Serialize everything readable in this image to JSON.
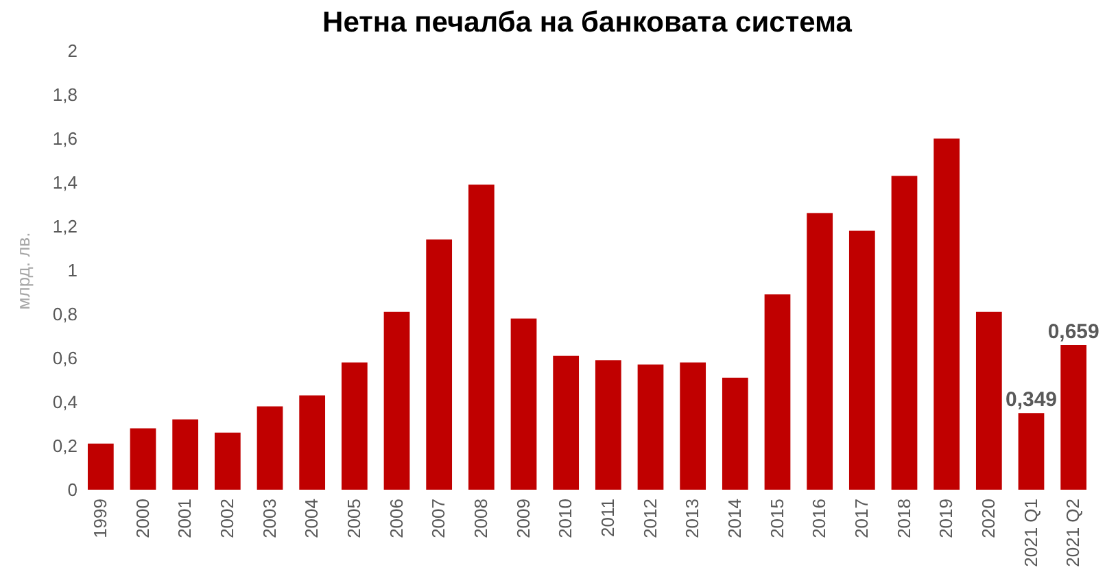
{
  "chart_data": {
    "type": "bar",
    "title": "Нетна печалба на банковата система",
    "ylabel": "млрд. лв.",
    "categories": [
      "1999",
      "2000",
      "2001",
      "2002",
      "2003",
      "2004",
      "2005",
      "2006",
      "2007",
      "2008",
      "2009",
      "2010",
      "2011",
      "2012",
      "2013",
      "2014",
      "2015",
      "2016",
      "2017",
      "2018",
      "2019",
      "2020",
      "2021 Q1",
      "2021 Q2"
    ],
    "values": [
      0.21,
      0.28,
      0.32,
      0.26,
      0.38,
      0.43,
      0.58,
      0.81,
      1.14,
      1.39,
      0.78,
      0.61,
      0.59,
      0.57,
      0.58,
      0.51,
      0.89,
      1.26,
      1.18,
      1.43,
      1.6,
      0.81,
      0.349,
      0.659
    ],
    "value_labels": [
      null,
      null,
      null,
      null,
      null,
      null,
      null,
      null,
      null,
      null,
      null,
      null,
      null,
      null,
      null,
      null,
      null,
      null,
      null,
      null,
      null,
      null,
      "0,349",
      "0,659"
    ],
    "color": "#c00000",
    "ylim": [
      0,
      2
    ],
    "yticks": [
      0,
      {
        "value": 0.2,
        "label": "0,2"
      },
      {
        "value": 0.4,
        "label": "0,4"
      },
      {
        "value": 0.6,
        "label": "0,6"
      },
      {
        "value": 0.8,
        "label": "0,8"
      },
      1,
      {
        "value": 1.2,
        "label": "1,2"
      },
      {
        "value": 1.4,
        "label": "1,4"
      },
      {
        "value": 1.6,
        "label": "1,6"
      },
      {
        "value": 1.8,
        "label": "1,8"
      },
      2
    ],
    "grid": false
  }
}
